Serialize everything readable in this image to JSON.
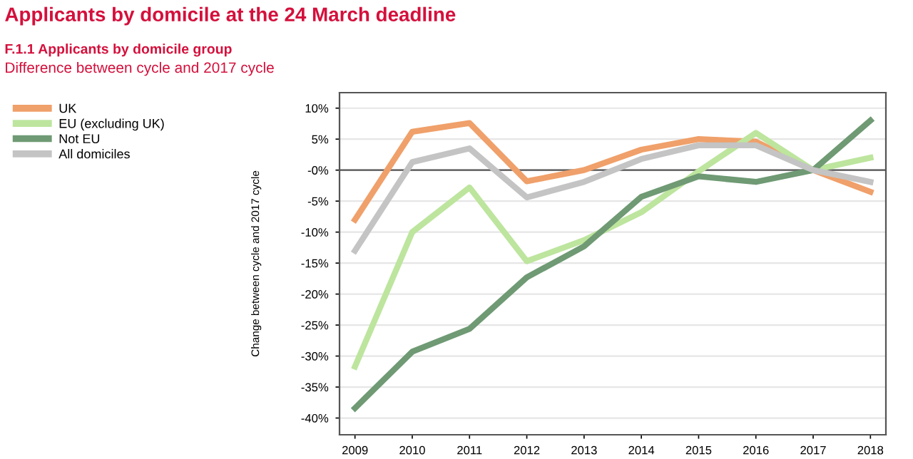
{
  "chart_data": {
    "type": "line",
    "title": "Applicants by domicile at the 24 March deadline",
    "subtitle": "F.1.1 Applicants by domicile group",
    "annotations": [
      "Difference between cycle and 2017 cycle"
    ],
    "ylabel": "Change between cycle and 2017 cycle",
    "categories": [
      "2009",
      "2010",
      "2011",
      "2012",
      "2013",
      "2014",
      "2015",
      "2016",
      "2017",
      "2018"
    ],
    "series": [
      {
        "name": "UK",
        "color": "#f0a06a",
        "values": [
          -8,
          6.2,
          7.6,
          -1.8,
          0,
          3.3,
          5,
          4.6,
          0,
          -3.5
        ]
      },
      {
        "name": "EU (excluding UK)",
        "color": "#bde59e",
        "values": [
          -31.7,
          -10,
          -2.8,
          -14.7,
          -11.3,
          -6.8,
          -0.2,
          6,
          0,
          2
        ]
      },
      {
        "name": "Not EU",
        "color": "#6f9a74",
        "values": [
          -38.4,
          -29.3,
          -25.6,
          -17.3,
          -12.3,
          -4.3,
          -1,
          -1.9,
          0,
          8
        ]
      },
      {
        "name": "All domiciles",
        "color": "#c4c4c4",
        "values": [
          -13,
          1.3,
          3.5,
          -4.4,
          -1.9,
          1.8,
          4,
          4,
          0,
          -1.9
        ]
      }
    ],
    "ylim": [
      -42.7,
      12.5
    ],
    "yticks": [
      {
        "value": 10,
        "label": "10%"
      },
      {
        "value": 5,
        "label": "5%"
      },
      {
        "value": 0,
        "label": "-0%"
      },
      {
        "value": -5,
        "label": "-5%"
      },
      {
        "value": -10,
        "label": "-10%"
      },
      {
        "value": -15,
        "label": "-15%"
      },
      {
        "value": -20,
        "label": "-20%"
      },
      {
        "value": -25,
        "label": "-25%"
      },
      {
        "value": -30,
        "label": "-30%"
      },
      {
        "value": -35,
        "label": "-35%"
      },
      {
        "value": -40,
        "label": "-40%"
      }
    ],
    "ref_lines": [
      {
        "axis": "y",
        "value": 0,
        "color": "#555555"
      }
    ],
    "grid": "y",
    "legend": "top left",
    "line_style": "solid",
    "marker": "none"
  }
}
